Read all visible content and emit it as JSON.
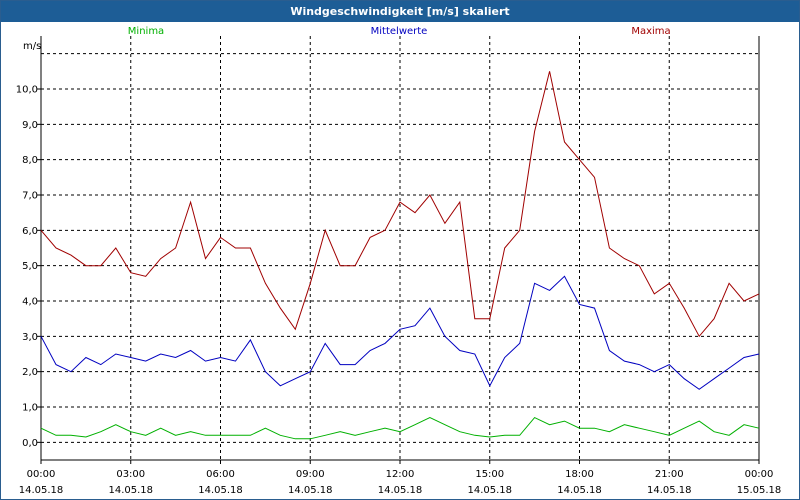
{
  "window": {
    "title": "Windgeschwindigkeit [m/s] skaliert"
  },
  "chart_data": {
    "type": "line",
    "title": "Windgeschwindigkeit [m/s] skaliert",
    "ylabel": "m/s",
    "xlabel": "",
    "ylim": [
      -0.5,
      11.5
    ],
    "yticks": [
      0.0,
      1.0,
      2.0,
      3.0,
      4.0,
      5.0,
      6.0,
      7.0,
      8.0,
      9.0,
      10.0
    ],
    "ytick_labels": [
      "0,0",
      "1,0",
      "2,0",
      "3,0",
      "4,0",
      "5,0",
      "6,0",
      "7,0",
      "8,0",
      "9,0",
      "10,0"
    ],
    "xlim": [
      0,
      24
    ],
    "xticks": [
      0,
      3,
      6,
      9,
      12,
      15,
      18,
      21,
      24
    ],
    "xtick_labels": [
      {
        "time": "00:00",
        "date": "14.05.18"
      },
      {
        "time": "03:00",
        "date": "14.05.18"
      },
      {
        "time": "06:00",
        "date": "14.05.18"
      },
      {
        "time": "09:00",
        "date": "14.05.18"
      },
      {
        "time": "12:00",
        "date": "14.05.18"
      },
      {
        "time": "15:00",
        "date": "14.05.18"
      },
      {
        "time": "18:00",
        "date": "14.05.18"
      },
      {
        "time": "21:00",
        "date": "14.05.18"
      },
      {
        "time": "00:00",
        "date": "15.05.18"
      }
    ],
    "grid": true,
    "legend_position": "top",
    "x": [
      0.0,
      0.5,
      1.0,
      1.5,
      2.0,
      2.5,
      3.0,
      3.5,
      4.0,
      4.5,
      5.0,
      5.5,
      6.0,
      6.5,
      7.0,
      7.5,
      8.0,
      8.5,
      9.0,
      9.5,
      10.0,
      10.5,
      11.0,
      11.5,
      12.0,
      12.5,
      13.0,
      13.5,
      14.0,
      14.5,
      15.0,
      15.5,
      16.0,
      16.5,
      17.0,
      17.5,
      18.0,
      18.5,
      19.0,
      19.5,
      20.0,
      20.5,
      21.0,
      21.5,
      22.0,
      22.5,
      23.0,
      23.5,
      24.0
    ],
    "series": [
      {
        "name": "Minima",
        "color": "#00b000",
        "values": [
          0.4,
          0.2,
          0.2,
          0.15,
          0.3,
          0.5,
          0.3,
          0.2,
          0.4,
          0.2,
          0.3,
          0.2,
          0.2,
          0.2,
          0.2,
          0.4,
          0.2,
          0.1,
          0.1,
          0.2,
          0.3,
          0.2,
          0.3,
          0.4,
          0.3,
          0.5,
          0.7,
          0.5,
          0.3,
          0.2,
          0.15,
          0.2,
          0.2,
          0.7,
          0.5,
          0.6,
          0.4,
          0.4,
          0.3,
          0.5,
          0.4,
          0.3,
          0.2,
          0.4,
          0.6,
          0.3,
          0.2,
          0.5,
          0.4
        ]
      },
      {
        "name": "Mittelwerte",
        "color": "#0000c0",
        "values": [
          3.0,
          2.2,
          2.0,
          2.4,
          2.2,
          2.5,
          2.4,
          2.3,
          2.5,
          2.4,
          2.6,
          2.3,
          2.4,
          2.3,
          2.9,
          2.0,
          1.6,
          1.8,
          2.0,
          2.8,
          2.2,
          2.2,
          2.6,
          2.8,
          3.2,
          3.3,
          3.8,
          3.0,
          2.6,
          2.5,
          1.6,
          2.4,
          2.8,
          4.5,
          4.3,
          4.7,
          3.9,
          3.8,
          2.6,
          2.3,
          2.2,
          2.0,
          2.2,
          1.8,
          1.5,
          1.8,
          2.1,
          2.4,
          2.5
        ]
      },
      {
        "name": "Maxima",
        "color": "#a00000",
        "values": [
          6.0,
          5.5,
          5.3,
          5.0,
          5.0,
          5.5,
          4.8,
          4.7,
          5.2,
          5.5,
          6.8,
          5.2,
          5.8,
          5.5,
          5.5,
          4.5,
          3.8,
          3.2,
          4.5,
          6.0,
          5.0,
          5.0,
          5.8,
          6.0,
          6.8,
          6.5,
          7.0,
          6.2,
          6.8,
          3.5,
          3.5,
          5.5,
          6.0,
          8.8,
          10.5,
          8.5,
          8.0,
          7.5,
          5.5,
          5.2,
          5.0,
          4.2,
          4.5,
          3.8,
          3.0,
          3.5,
          4.5,
          4.0,
          4.2
        ]
      }
    ]
  }
}
